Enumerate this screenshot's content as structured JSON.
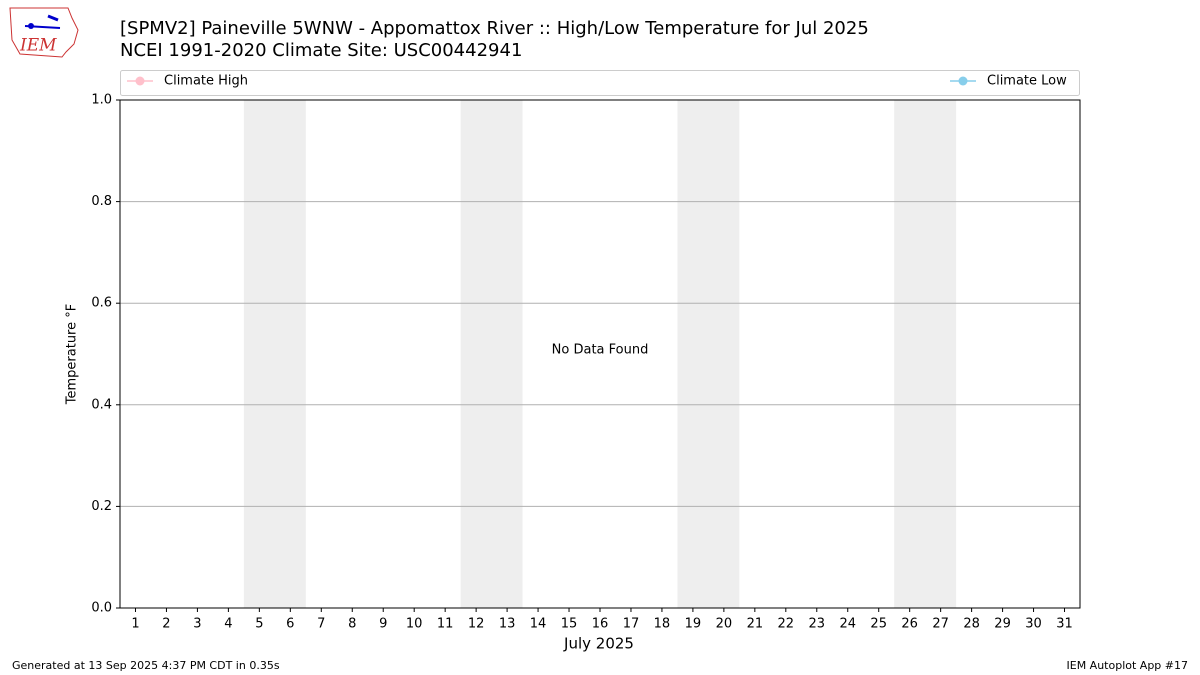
{
  "chart_data": {
    "type": "line",
    "logo_text": "IEM",
    "title": "[SPMV2] Paineville 5WNW - Appomattox River :: High/Low Temperature for Jul 2025",
    "subtitle": "NCEI 1991-2020 Climate Site: USC00442941",
    "xlabel": "July 2025",
    "ylabel": "Temperature °F",
    "annotation": "No Data Found",
    "footer_left": "Generated at 13 Sep 2025 4:37 PM CDT in 0.35s",
    "footer_right": "IEM Autoplot App #17",
    "x": [
      1,
      2,
      3,
      4,
      5,
      6,
      7,
      8,
      9,
      10,
      11,
      12,
      13,
      14,
      15,
      16,
      17,
      18,
      19,
      20,
      21,
      22,
      23,
      24,
      25,
      26,
      27,
      28,
      29,
      30,
      31
    ],
    "series": [
      {
        "name": "Climate High",
        "color": "pink",
        "values": [
          null,
          null,
          null,
          null,
          null,
          null,
          null,
          null,
          null,
          null,
          null,
          null,
          null,
          null,
          null,
          null,
          null,
          null,
          null,
          null,
          null,
          null,
          null,
          null,
          null,
          null,
          null,
          null,
          null,
          null,
          null
        ]
      },
      {
        "name": "Climate Low",
        "color": "skyblue",
        "values": [
          null,
          null,
          null,
          null,
          null,
          null,
          null,
          null,
          null,
          null,
          null,
          null,
          null,
          null,
          null,
          null,
          null,
          null,
          null,
          null,
          null,
          null,
          null,
          null,
          null,
          null,
          null,
          null,
          null,
          null,
          null
        ]
      }
    ],
    "weekend_spans": [
      [
        4.5,
        6.5
      ],
      [
        11.5,
        13.5
      ],
      [
        18.5,
        20.5
      ],
      [
        25.5,
        27.5
      ]
    ],
    "weekend_color": "#eeeeee",
    "xlim": [
      0.5,
      31.5
    ],
    "xticks": [
      1,
      2,
      3,
      4,
      5,
      6,
      7,
      8,
      9,
      10,
      11,
      12,
      13,
      14,
      15,
      16,
      17,
      18,
      19,
      20,
      21,
      22,
      23,
      24,
      25,
      26,
      27,
      28,
      29,
      30,
      31
    ],
    "ylim": [
      0,
      1
    ],
    "yticks": [
      {
        "value": 0,
        "label": "0.0"
      },
      0.2,
      0.4,
      0.6,
      0.8,
      {
        "value": 1,
        "label": "1.0"
      }
    ],
    "grid": true
  }
}
